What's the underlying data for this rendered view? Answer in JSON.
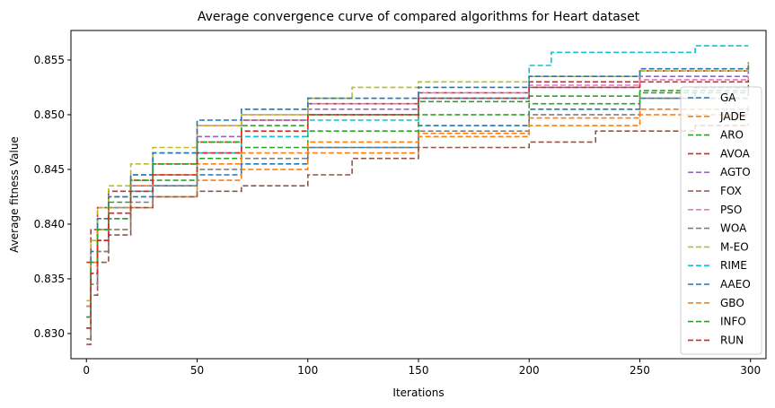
{
  "chart_data": {
    "type": "line",
    "title": "Average convergence curve of compared algorithms for Heart dataset",
    "xlabel": "Iterations",
    "ylabel": "Average fitness Value",
    "xlim": [
      -7,
      307
    ],
    "ylim": [
      0.8277,
      0.8577
    ],
    "xticks": [
      0,
      50,
      100,
      150,
      200,
      250,
      300
    ],
    "yticks": [
      0.83,
      0.835,
      0.84,
      0.845,
      0.85,
      0.855
    ],
    "ytick_labels": [
      "0.830",
      "0.835",
      "0.840",
      "0.845",
      "0.850",
      "0.855"
    ],
    "legend_position": "right",
    "line_style": "dashed",
    "grid": false,
    "series": [
      {
        "name": "GA",
        "color": "#1f77b4",
        "points": [
          [
            0,
            0.8305
          ],
          [
            2,
            0.8355
          ],
          [
            5,
            0.8385
          ],
          [
            10,
            0.8405
          ],
          [
            20,
            0.8425
          ],
          [
            30,
            0.8435
          ],
          [
            50,
            0.8445
          ],
          [
            70,
            0.8455
          ],
          [
            100,
            0.847
          ],
          [
            150,
            0.849
          ],
          [
            200,
            0.8505
          ],
          [
            250,
            0.8515
          ],
          [
            275,
            0.8525
          ],
          [
            299,
            0.8527
          ]
        ]
      },
      {
        "name": "JADE",
        "color": "#ff7f0e",
        "points": [
          [
            0,
            0.8295
          ],
          [
            2,
            0.8345
          ],
          [
            5,
            0.8375
          ],
          [
            10,
            0.8395
          ],
          [
            20,
            0.8415
          ],
          [
            30,
            0.8425
          ],
          [
            50,
            0.844
          ],
          [
            70,
            0.845
          ],
          [
            100,
            0.8465
          ],
          [
            150,
            0.848
          ],
          [
            200,
            0.849
          ],
          [
            250,
            0.85
          ],
          [
            299,
            0.8505
          ]
        ]
      },
      {
        "name": "ARO",
        "color": "#2ca02c",
        "points": [
          [
            0,
            0.8305
          ],
          [
            2,
            0.8355
          ],
          [
            5,
            0.8385
          ],
          [
            10,
            0.8405
          ],
          [
            20,
            0.843
          ],
          [
            30,
            0.844
          ],
          [
            50,
            0.846
          ],
          [
            70,
            0.847
          ],
          [
            100,
            0.8485
          ],
          [
            150,
            0.85
          ],
          [
            200,
            0.851
          ],
          [
            250,
            0.852
          ],
          [
            299,
            0.8525
          ]
        ]
      },
      {
        "name": "AVOA",
        "color": "#d62728",
        "points": [
          [
            0,
            0.8365
          ],
          [
            2,
            0.8395
          ],
          [
            5,
            0.8415
          ],
          [
            10,
            0.843
          ],
          [
            20,
            0.844
          ],
          [
            30,
            0.8455
          ],
          [
            50,
            0.8475
          ],
          [
            70,
            0.8495
          ],
          [
            100,
            0.851
          ],
          [
            150,
            0.852
          ],
          [
            200,
            0.853
          ],
          [
            250,
            0.854
          ],
          [
            299,
            0.8547
          ]
        ]
      },
      {
        "name": "AGTO",
        "color": "#9467bd",
        "points": [
          [
            0,
            0.8315
          ],
          [
            2,
            0.8365
          ],
          [
            5,
            0.8395
          ],
          [
            10,
            0.8415
          ],
          [
            20,
            0.8435
          ],
          [
            30,
            0.8455
          ],
          [
            50,
            0.848
          ],
          [
            70,
            0.8495
          ],
          [
            100,
            0.8505
          ],
          [
            150,
            0.8515
          ],
          [
            200,
            0.8525
          ],
          [
            250,
            0.8535
          ],
          [
            299,
            0.8542
          ]
        ]
      },
      {
        "name": "FOX",
        "color": "#8c564b",
        "points": [
          [
            0,
            0.829
          ],
          [
            2,
            0.8335
          ],
          [
            5,
            0.8365
          ],
          [
            10,
            0.839
          ],
          [
            20,
            0.8415
          ],
          [
            30,
            0.8425
          ],
          [
            50,
            0.843
          ],
          [
            70,
            0.8435
          ],
          [
            100,
            0.8445
          ],
          [
            120,
            0.846
          ],
          [
            150,
            0.847
          ],
          [
            200,
            0.8475
          ],
          [
            230,
            0.8485
          ],
          [
            260,
            0.8485
          ],
          [
            275,
            0.849
          ],
          [
            299,
            0.8492
          ]
        ]
      },
      {
        "name": "PSO",
        "color": "#e377c2",
        "points": [
          [
            0,
            0.8325
          ],
          [
            2,
            0.8375
          ],
          [
            5,
            0.8405
          ],
          [
            10,
            0.8425
          ],
          [
            20,
            0.8445
          ],
          [
            30,
            0.8465
          ],
          [
            50,
            0.849
          ],
          [
            70,
            0.85
          ],
          [
            100,
            0.851
          ],
          [
            150,
            0.852
          ],
          [
            200,
            0.8527
          ],
          [
            250,
            0.8532
          ],
          [
            299,
            0.8535
          ]
        ]
      },
      {
        "name": "WOA",
        "color": "#7f7f7f",
        "points": [
          [
            0,
            0.8295
          ],
          [
            2,
            0.8345
          ],
          [
            5,
            0.8375
          ],
          [
            10,
            0.8395
          ],
          [
            20,
            0.842
          ],
          [
            30,
            0.8435
          ],
          [
            50,
            0.845
          ],
          [
            70,
            0.846
          ],
          [
            100,
            0.847
          ],
          [
            150,
            0.8485
          ],
          [
            200,
            0.85
          ],
          [
            250,
            0.8515
          ],
          [
            299,
            0.8525
          ]
        ]
      },
      {
        "name": "M-EO",
        "color": "#bcbd22",
        "points": [
          [
            0,
            0.833
          ],
          [
            2,
            0.8385
          ],
          [
            5,
            0.8415
          ],
          [
            10,
            0.8435
          ],
          [
            20,
            0.8455
          ],
          [
            30,
            0.847
          ],
          [
            50,
            0.849
          ],
          [
            70,
            0.85
          ],
          [
            100,
            0.8515
          ],
          [
            120,
            0.8525
          ],
          [
            150,
            0.853
          ],
          [
            200,
            0.8535
          ],
          [
            250,
            0.854
          ],
          [
            299,
            0.8547
          ]
        ]
      },
      {
        "name": "RIME",
        "color": "#17becf",
        "points": [
          [
            0,
            0.8315
          ],
          [
            2,
            0.8365
          ],
          [
            5,
            0.8395
          ],
          [
            10,
            0.8415
          ],
          [
            20,
            0.843
          ],
          [
            30,
            0.8445
          ],
          [
            50,
            0.8465
          ],
          [
            70,
            0.848
          ],
          [
            100,
            0.8495
          ],
          [
            150,
            0.8515
          ],
          [
            200,
            0.8545
          ],
          [
            210,
            0.8557
          ],
          [
            250,
            0.8557
          ],
          [
            275,
            0.8563
          ],
          [
            299,
            0.8563
          ]
        ]
      },
      {
        "name": "AAEO",
        "color": "#1f77b4",
        "points": [
          [
            0,
            0.8325
          ],
          [
            2,
            0.8375
          ],
          [
            5,
            0.8405
          ],
          [
            10,
            0.8425
          ],
          [
            20,
            0.8445
          ],
          [
            30,
            0.8465
          ],
          [
            50,
            0.8495
          ],
          [
            70,
            0.8505
          ],
          [
            100,
            0.8515
          ],
          [
            150,
            0.8525
          ],
          [
            200,
            0.8535
          ],
          [
            250,
            0.8542
          ],
          [
            299,
            0.8548
          ]
        ]
      },
      {
        "name": "GBO",
        "color": "#ff7f0e",
        "points": [
          [
            0,
            0.8325
          ],
          [
            2,
            0.8365
          ],
          [
            5,
            0.8395
          ],
          [
            10,
            0.8415
          ],
          [
            20,
            0.8435
          ],
          [
            30,
            0.8445
          ],
          [
            50,
            0.8455
          ],
          [
            70,
            0.8465
          ],
          [
            100,
            0.8475
          ],
          [
            150,
            0.8483
          ],
          [
            200,
            0.8497
          ],
          [
            250,
            0.8505
          ],
          [
            299,
            0.851
          ]
        ]
      },
      {
        "name": "INFO",
        "color": "#2ca02c",
        "points": [
          [
            0,
            0.8315
          ],
          [
            2,
            0.8365
          ],
          [
            5,
            0.8395
          ],
          [
            10,
            0.842
          ],
          [
            20,
            0.844
          ],
          [
            30,
            0.8455
          ],
          [
            50,
            0.8475
          ],
          [
            70,
            0.849
          ],
          [
            100,
            0.85
          ],
          [
            150,
            0.8512
          ],
          [
            200,
            0.8517
          ],
          [
            250,
            0.8522
          ],
          [
            299,
            0.853
          ]
        ]
      },
      {
        "name": "RUN",
        "color": "#d62728",
        "points": [
          [
            0,
            0.8305
          ],
          [
            2,
            0.8355
          ],
          [
            5,
            0.8385
          ],
          [
            10,
            0.841
          ],
          [
            20,
            0.843
          ],
          [
            30,
            0.8445
          ],
          [
            50,
            0.8465
          ],
          [
            70,
            0.8485
          ],
          [
            100,
            0.85
          ],
          [
            150,
            0.8515
          ],
          [
            200,
            0.8525
          ],
          [
            250,
            0.853
          ],
          [
            299,
            0.8533
          ]
        ]
      }
    ]
  }
}
